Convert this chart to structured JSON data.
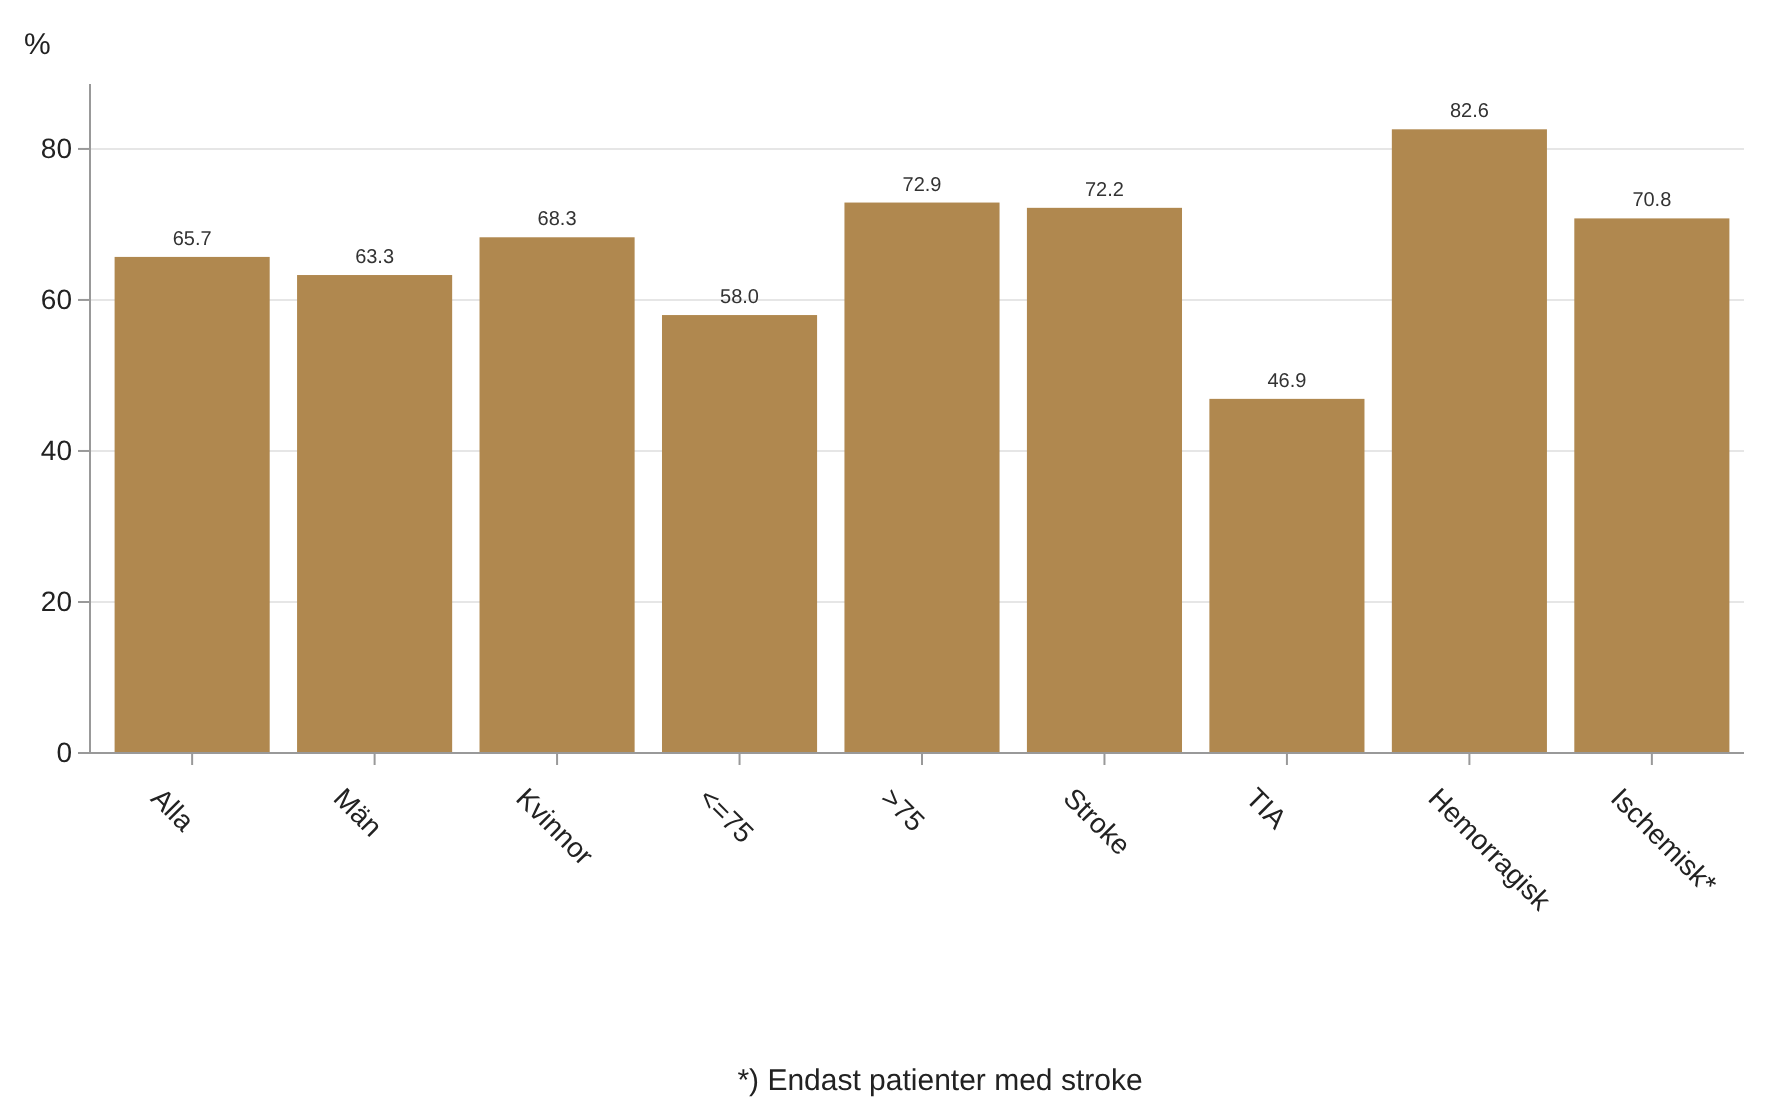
{
  "chart_data": {
    "type": "bar",
    "ylabel": "%",
    "categories": [
      "Alla",
      "Män",
      "Kvinnor",
      "<=75",
      ">75",
      "Stroke",
      "TIA",
      "Hemorragisk",
      "Ischemisk*"
    ],
    "series": [
      {
        "color": "#b0884f",
        "values": [
          65.7,
          63.3,
          68.3,
          58.0,
          72.9,
          72.2,
          46.9,
          82.6,
          70.8
        ]
      }
    ],
    "value_labels": [
      "65.7",
      "63.3",
      "68.3",
      "58.0",
      "72.9",
      "72.2",
      "46.9",
      "82.6",
      "70.8"
    ],
    "ylim": [
      0,
      88.6
    ],
    "yticks": [
      0,
      20,
      40,
      60,
      80
    ],
    "grid": "y",
    "annotations": [
      "*) Endast patienter med stroke"
    ]
  }
}
